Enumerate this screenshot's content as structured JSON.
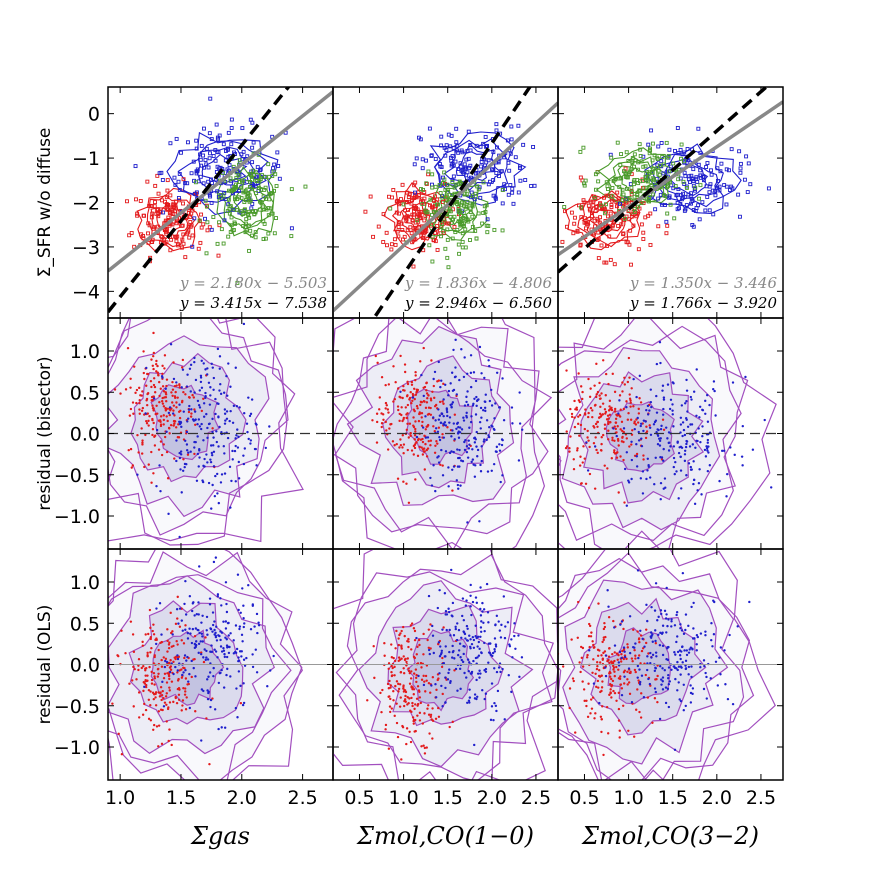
{
  "chart_data": [
    {
      "type": "scatter",
      "panel": "top-left",
      "ylabel": "Σ_SFR w/o diffuse",
      "xlim": [
        0.9,
        2.75
      ],
      "ylim": [
        -4.6,
        0.6
      ],
      "yticks": [
        "0",
        "−1",
        "−2",
        "−3",
        "−4"
      ],
      "fits": [
        {
          "name": "OLS",
          "style": "solid",
          "color": "#888888",
          "slope": 2.18,
          "intercept": -5.503,
          "label": "y = 2.180x − 5.503"
        },
        {
          "name": "bisector",
          "style": "dashed",
          "color": "#000000",
          "slope": 3.415,
          "intercept": -7.538,
          "label": "y = 3.415x − 7.538"
        }
      ],
      "series": [
        {
          "name": "red",
          "color": "#e31a1c",
          "center": [
            1.4,
            -2.4
          ],
          "spread": [
            0.15,
            0.4
          ]
        },
        {
          "name": "blue",
          "color": "#1f1fcc",
          "center": [
            1.85,
            -1.3
          ],
          "spread": [
            0.25,
            0.5
          ]
        },
        {
          "name": "green",
          "color": "#4a9a2a",
          "center": [
            2.05,
            -2.0
          ],
          "spread": [
            0.15,
            0.45
          ]
        }
      ]
    },
    {
      "type": "scatter",
      "panel": "top-middle",
      "xlim": [
        0.2,
        2.75
      ],
      "ylim": [
        -4.6,
        0.6
      ],
      "fits": [
        {
          "name": "OLS",
          "style": "solid",
          "color": "#888888",
          "slope": 1.836,
          "intercept": -4.806,
          "label": "y = 1.836x − 4.806"
        },
        {
          "name": "bisector",
          "style": "dashed",
          "color": "#000000",
          "slope": 2.946,
          "intercept": -6.56,
          "label": "y = 2.946x − 6.560"
        }
      ],
      "series": [
        {
          "name": "red",
          "color": "#e31a1c",
          "center": [
            1.15,
            -2.3
          ],
          "spread": [
            0.2,
            0.4
          ]
        },
        {
          "name": "blue",
          "color": "#1f1fcc",
          "center": [
            1.8,
            -1.2
          ],
          "spread": [
            0.3,
            0.45
          ]
        },
        {
          "name": "green",
          "color": "#4a9a2a",
          "center": [
            1.6,
            -2.2
          ],
          "spread": [
            0.2,
            0.4
          ]
        }
      ]
    },
    {
      "type": "scatter",
      "panel": "top-right",
      "xlim": [
        0.2,
        2.75
      ],
      "ylim": [
        -4.6,
        0.6
      ],
      "fits": [
        {
          "name": "OLS",
          "style": "solid",
          "color": "#888888",
          "slope": 1.35,
          "intercept": -3.446,
          "label": "y = 1.350x − 3.446"
        },
        {
          "name": "bisector",
          "style": "dashed",
          "color": "#000000",
          "slope": 1.766,
          "intercept": -3.92,
          "label": "y = 1.766x − 3.920"
        }
      ],
      "series": [
        {
          "name": "red",
          "color": "#e31a1c",
          "center": [
            0.75,
            -2.4
          ],
          "spread": [
            0.25,
            0.4
          ]
        },
        {
          "name": "blue",
          "color": "#1f1fcc",
          "center": [
            1.7,
            -1.5
          ],
          "spread": [
            0.3,
            0.45
          ]
        },
        {
          "name": "green",
          "color": "#4a9a2a",
          "center": [
            1.1,
            -1.5
          ],
          "spread": [
            0.25,
            0.4
          ]
        }
      ]
    },
    {
      "type": "scatter",
      "panel": "middle-left",
      "ylabel": "residual (bisector)",
      "xlim": [
        0.9,
        2.75
      ],
      "ylim": [
        -1.4,
        1.4
      ],
      "zero_line": "dashed",
      "yticks": [
        "1.0",
        "0.5",
        "0.0",
        "−0.5",
        "−1.0"
      ],
      "series": [
        {
          "name": "red",
          "color": "#e31a1c",
          "center": [
            1.35,
            0.35
          ],
          "spread": [
            0.15,
            0.35
          ]
        },
        {
          "name": "blue",
          "color": "#1f1fcc",
          "center": [
            1.7,
            0.1
          ],
          "spread": [
            0.2,
            0.45
          ]
        }
      ]
    },
    {
      "type": "scatter",
      "panel": "middle-middle",
      "xlim": [
        0.2,
        2.75
      ],
      "ylim": [
        -1.4,
        1.4
      ],
      "zero_line": "dashed",
      "series": [
        {
          "name": "red",
          "color": "#e31a1c",
          "center": [
            1.1,
            0.2
          ],
          "spread": [
            0.2,
            0.35
          ]
        },
        {
          "name": "blue",
          "color": "#1f1fcc",
          "center": [
            1.7,
            0.15
          ],
          "spread": [
            0.25,
            0.4
          ]
        }
      ]
    },
    {
      "type": "scatter",
      "panel": "middle-right",
      "xlim": [
        0.2,
        2.75
      ],
      "ylim": [
        -1.4,
        1.4
      ],
      "zero_line": "dashed",
      "series": [
        {
          "name": "red",
          "color": "#e31a1c",
          "center": [
            0.8,
            0.1
          ],
          "spread": [
            0.25,
            0.3
          ]
        },
        {
          "name": "blue",
          "color": "#1f1fcc",
          "center": [
            1.5,
            -0.05
          ],
          "spread": [
            0.35,
            0.35
          ]
        }
      ]
    },
    {
      "type": "scatter",
      "panel": "bottom-left",
      "ylabel": "residual (OLS)",
      "xlim": [
        0.9,
        2.75
      ],
      "ylim": [
        -1.4,
        1.4
      ],
      "zero_line": "solid",
      "yticks": [
        "1.0",
        "0.5",
        "0.0",
        "−0.5",
        "−1.0"
      ],
      "xticks": [
        "1.0",
        "1.5",
        "2.0",
        "2.5"
      ],
      "xlabel": "Σgas",
      "series": [
        {
          "name": "red",
          "color": "#e31a1c",
          "center": [
            1.35,
            -0.15
          ],
          "spread": [
            0.15,
            0.35
          ]
        },
        {
          "name": "blue",
          "color": "#1f1fcc",
          "center": [
            1.75,
            0.2
          ],
          "spread": [
            0.2,
            0.4
          ]
        }
      ]
    },
    {
      "type": "scatter",
      "panel": "bottom-middle",
      "xlim": [
        0.2,
        2.75
      ],
      "ylim": [
        -1.4,
        1.4
      ],
      "zero_line": "solid",
      "xticks": [
        "0.5",
        "1.0",
        "1.5",
        "2.0",
        "2.5"
      ],
      "xlabel": "Σmol,CO(1−0)",
      "series": [
        {
          "name": "red",
          "color": "#e31a1c",
          "center": [
            1.1,
            -0.2
          ],
          "spread": [
            0.2,
            0.35
          ]
        },
        {
          "name": "blue",
          "color": "#1f1fcc",
          "center": [
            1.75,
            0.2
          ],
          "spread": [
            0.25,
            0.4
          ]
        }
      ]
    },
    {
      "type": "scatter",
      "panel": "bottom-right",
      "xlim": [
        0.2,
        2.75
      ],
      "ylim": [
        -1.4,
        1.4
      ],
      "zero_line": "solid",
      "xticks": [
        "0.5",
        "1.0",
        "1.5",
        "2.0",
        "2.5"
      ],
      "xlabel": "Σmol,CO(3−2)",
      "series": [
        {
          "name": "red",
          "color": "#e31a1c",
          "center": [
            0.8,
            -0.1
          ],
          "spread": [
            0.25,
            0.3
          ]
        },
        {
          "name": "blue",
          "color": "#1f1fcc",
          "center": [
            1.5,
            0.15
          ],
          "spread": [
            0.35,
            0.35
          ]
        }
      ]
    }
  ],
  "contour_color": "#a24fbf",
  "contour_fill": "#8a8ac8"
}
